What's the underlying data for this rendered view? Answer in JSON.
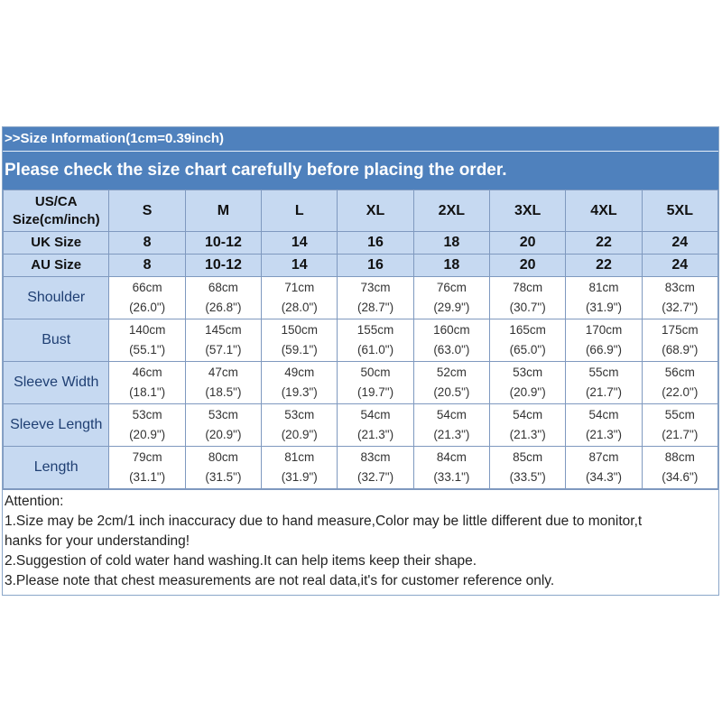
{
  "title": ">>Size Information(1cm=0.39inch)",
  "subtitle": "Please check the size chart carefully before placing the order.",
  "header_rows": [
    {
      "label": [
        "US/CA",
        "Size(cm/inch)"
      ],
      "values": [
        "S",
        "M",
        "L",
        "XL",
        "2XL",
        "3XL",
        "4XL",
        "5XL"
      ]
    },
    {
      "label": [
        "UK Size"
      ],
      "values": [
        "8",
        "10-12",
        "14",
        "16",
        "18",
        "20",
        "22",
        "24"
      ]
    },
    {
      "label": [
        "AU Size"
      ],
      "values": [
        "8",
        "10-12",
        "14",
        "16",
        "18",
        "20",
        "22",
        "24"
      ]
    }
  ],
  "measurements": [
    {
      "label": "Shoulder",
      "cm": [
        "66cm",
        "68cm",
        "71cm",
        "73cm",
        "76cm",
        "78cm",
        "81cm",
        "83cm"
      ],
      "inch": [
        "(26.0\")",
        "(26.8\")",
        "(28.0\")",
        "(28.7\")",
        "(29.9\")",
        "(30.7\")",
        "(31.9\")",
        "(32.7\")"
      ]
    },
    {
      "label": "Bust",
      "cm": [
        "140cm",
        "145cm",
        "150cm",
        "155cm",
        "160cm",
        "165cm",
        "170cm",
        "175cm"
      ],
      "inch": [
        "(55.1\")",
        "(57.1\")",
        "(59.1\")",
        "(61.0\")",
        "(63.0\")",
        "(65.0\")",
        "(66.9\")",
        "(68.9\")"
      ]
    },
    {
      "label": "Sleeve Width",
      "cm": [
        "46cm",
        "47cm",
        "49cm",
        "50cm",
        "52cm",
        "53cm",
        "55cm",
        "56cm"
      ],
      "inch": [
        "(18.1\")",
        "(18.5\")",
        "(19.3\")",
        "(19.7\")",
        "(20.5\")",
        "(20.9\")",
        "(21.7\")",
        "(22.0\")"
      ]
    },
    {
      "label": "Sleeve Length",
      "cm": [
        "53cm",
        "53cm",
        "53cm",
        "54cm",
        "54cm",
        "54cm",
        "54cm",
        "55cm"
      ],
      "inch": [
        "(20.9\")",
        "(20.9\")",
        "(20.9\")",
        "(21.3\")",
        "(21.3\")",
        "(21.3\")",
        "(21.3\")",
        "(21.7\")"
      ]
    },
    {
      "label": "Length",
      "cm": [
        "79cm",
        "80cm",
        "81cm",
        "83cm",
        "84cm",
        "85cm",
        "87cm",
        "88cm"
      ],
      "inch": [
        "(31.1\")",
        "(31.5\")",
        "(31.9\")",
        "(32.7\")",
        "(33.1\")",
        "(33.5\")",
        "(34.3\")",
        "(34.6\")"
      ]
    }
  ],
  "notes": {
    "heading": "Attention:",
    "lines": [
      "1.Size may be 2cm/1 inch inaccuracy due to hand measure,Color may be little different due to monitor,t",
      "hanks for your understanding!",
      "2.Suggestion of cold water hand washing.It can help items keep their shape.",
      "3.Please note that chest measurements are not real data,it's for customer reference only."
    ]
  },
  "colors": {
    "banner": "#4f81bd",
    "header_cell": "#c6d9f1",
    "border": "#7f99bf"
  }
}
